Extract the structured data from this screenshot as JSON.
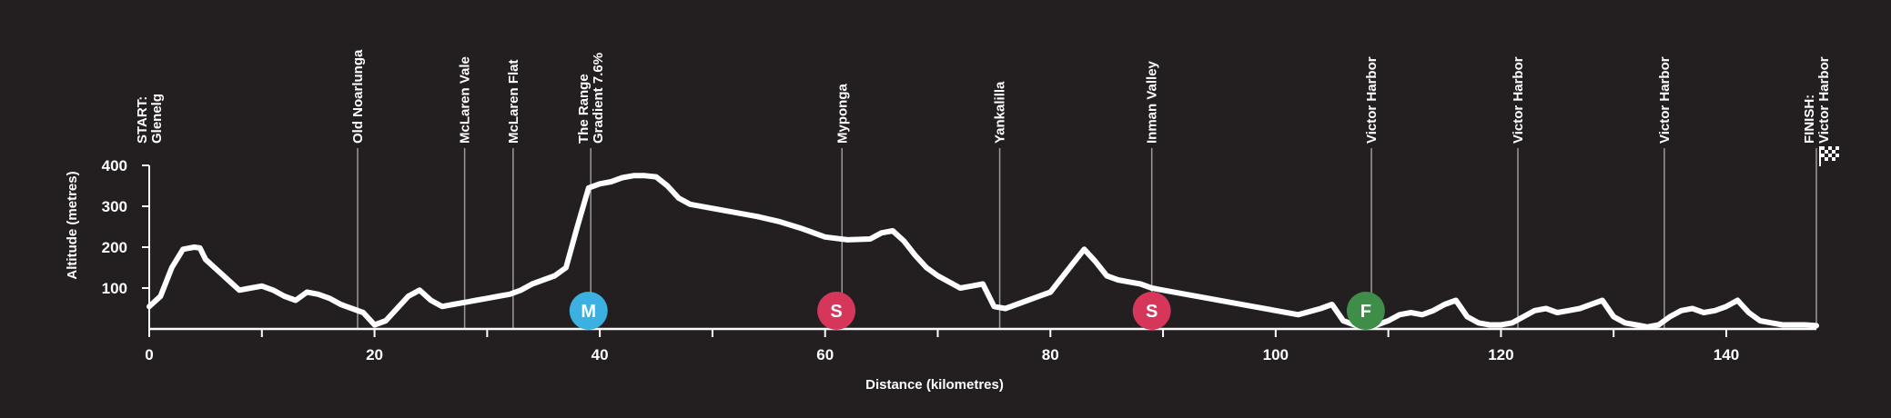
{
  "chart_data": {
    "type": "line",
    "title": "",
    "xlabel": "Distance (kilometres)",
    "ylabel": "Altitude (metres)",
    "xlim": [
      0,
      148
    ],
    "ylim": [
      0,
      400
    ],
    "xticks": [
      0,
      20,
      40,
      60,
      80,
      100,
      120,
      140
    ],
    "yticks": [
      100,
      200,
      300,
      400
    ],
    "colors": {
      "background": "#231f20",
      "line": "#ffffff",
      "guide": "#9a9a9a",
      "M": "#3cb0e1",
      "S": "#d6365a",
      "F": "#3e8e4a"
    },
    "locations": [
      {
        "km": 0,
        "lines": [
          "START:",
          "Glenelg"
        ]
      },
      {
        "km": 18.5,
        "lines": [
          "Old Noarlunga"
        ]
      },
      {
        "km": 28,
        "lines": [
          "McLaren Vale"
        ]
      },
      {
        "km": 32.3,
        "lines": [
          "McLaren Flat"
        ]
      },
      {
        "km": 39.2,
        "lines": [
          "The Range",
          "Gradient 7.6%"
        ]
      },
      {
        "km": 61.5,
        "lines": [
          "Myponga"
        ]
      },
      {
        "km": 75.5,
        "lines": [
          "Yankalilla"
        ]
      },
      {
        "km": 89,
        "lines": [
          "Inman Valley"
        ]
      },
      {
        "km": 108.5,
        "lines": [
          "Victor Harbor"
        ]
      },
      {
        "km": 121.5,
        "lines": [
          "Victor Harbor"
        ]
      },
      {
        "km": 134.5,
        "lines": [
          "Victor Harbor"
        ]
      },
      {
        "km": 148,
        "lines": [
          "FINISH:",
          "Victor Harbor"
        ]
      }
    ],
    "markers": [
      {
        "km": 39,
        "label": "M",
        "type": "M"
      },
      {
        "km": 61,
        "label": "S",
        "type": "S"
      },
      {
        "km": 89,
        "label": "S",
        "type": "S"
      },
      {
        "km": 108,
        "label": "F",
        "type": "F"
      }
    ],
    "series": [
      {
        "x": [
          0,
          1,
          2,
          3,
          4,
          4.5,
          5,
          6,
          7,
          8,
          9,
          10,
          11,
          12,
          13,
          14,
          15,
          16,
          17,
          18,
          19,
          20,
          21,
          22,
          23,
          24,
          25,
          26,
          27,
          28,
          29,
          30,
          31,
          32,
          33,
          34,
          35,
          36,
          37,
          38,
          39,
          40,
          41,
          42,
          43,
          44,
          45,
          46,
          47,
          48,
          50,
          52,
          54,
          56,
          58,
          60,
          62,
          64,
          65,
          66,
          67,
          68,
          69,
          70,
          71,
          72,
          73,
          74,
          75,
          76,
          78,
          80,
          82,
          83,
          84,
          85,
          86,
          87,
          88,
          89,
          90,
          92,
          94,
          96,
          98,
          100,
          102,
          104,
          105,
          106,
          107,
          108,
          109,
          110,
          111,
          112,
          113,
          114,
          115,
          116,
          117,
          118,
          119,
          120,
          121,
          122,
          123,
          124,
          125,
          126,
          127,
          128,
          129,
          130,
          131,
          132,
          133,
          134,
          135,
          136,
          137,
          138,
          139,
          140,
          141,
          142,
          143,
          144,
          145,
          146,
          147,
          148
        ],
        "values": [
          55,
          80,
          150,
          195,
          200,
          198,
          170,
          145,
          120,
          95,
          100,
          105,
          95,
          80,
          70,
          90,
          85,
          75,
          60,
          50,
          40,
          10,
          20,
          50,
          80,
          95,
          70,
          55,
          60,
          65,
          70,
          75,
          80,
          85,
          95,
          110,
          120,
          130,
          150,
          250,
          345,
          355,
          360,
          370,
          375,
          375,
          372,
          350,
          320,
          305,
          295,
          285,
          275,
          262,
          245,
          225,
          218,
          220,
          235,
          240,
          215,
          180,
          150,
          130,
          115,
          100,
          105,
          110,
          55,
          50,
          70,
          90,
          160,
          195,
          165,
          130,
          120,
          115,
          110,
          100,
          95,
          85,
          75,
          65,
          55,
          45,
          35,
          50,
          60,
          20,
          10,
          5,
          10,
          20,
          35,
          40,
          35,
          45,
          60,
          70,
          30,
          15,
          10,
          10,
          15,
          30,
          45,
          50,
          40,
          45,
          50,
          60,
          70,
          30,
          15,
          10,
          5,
          10,
          30,
          45,
          50,
          40,
          45,
          55,
          70,
          40,
          20,
          15,
          10,
          10,
          10,
          8
        ]
      }
    ]
  }
}
